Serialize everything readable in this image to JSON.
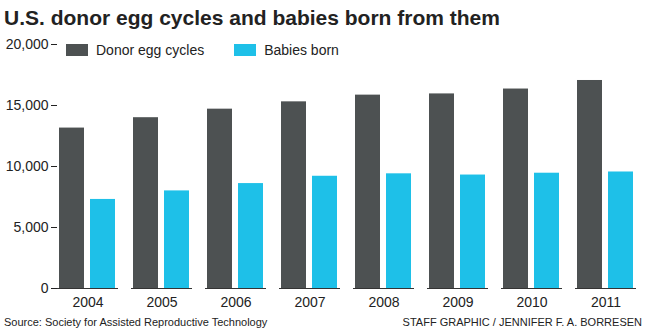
{
  "chart_data": {
    "type": "bar",
    "title": "U.S. donor egg cycles and babies born from them",
    "source": "Source: Society for Assisted Reproductive Technology",
    "credit": "STAFF GRAPHIC / JENNIFER F. A. BORRESEN",
    "categories": [
      "2004",
      "2005",
      "2006",
      "2007",
      "2008",
      "2009",
      "2010",
      "2011"
    ],
    "series": [
      {
        "name": "Donor egg cycles",
        "color": "#4d5152",
        "values": [
          13150,
          14000,
          14700,
          15300,
          15850,
          15950,
          16350,
          17050
        ]
      },
      {
        "name": "Babies born",
        "color": "#1ec0e8",
        "values": [
          7300,
          8000,
          8600,
          9200,
          9400,
          9300,
          9450,
          9550
        ]
      }
    ],
    "ylim": [
      0,
      20000
    ],
    "yticks": [
      0,
      {
        "value": 5000,
        "label": "5,000"
      },
      {
        "value": 10000,
        "label": "10,000"
      },
      {
        "value": 15000,
        "label": "15,000"
      },
      {
        "value": 20000,
        "label": "20,000"
      }
    ],
    "grid": false,
    "legend": "top-left"
  }
}
